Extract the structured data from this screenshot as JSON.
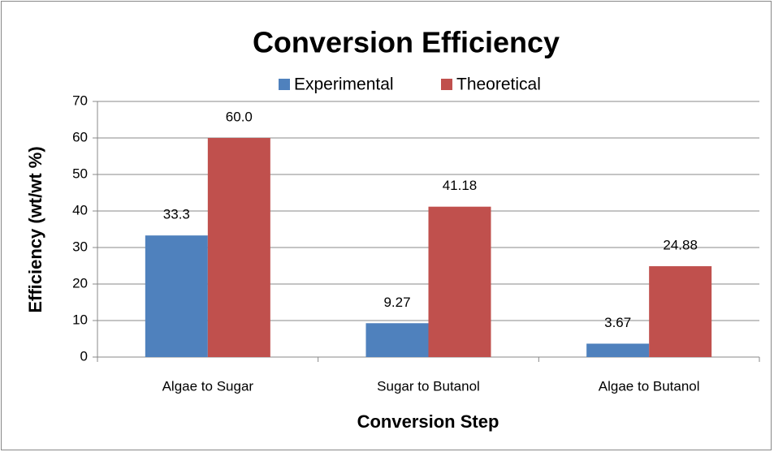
{
  "chart_data": {
    "type": "bar",
    "title": "Conversion Efficiency",
    "x_label": "Conversion Step",
    "y_label": "Efficiency (wt/wt %)",
    "categories": [
      "Algae to Sugar",
      "Sugar to Butanol",
      "Algae to Butanol"
    ],
    "series": [
      {
        "name": "Experimental",
        "color": "#4f81bd",
        "values": [
          33.3,
          9.27,
          3.67
        ]
      },
      {
        "name": "Theoretical",
        "color": "#c0504d",
        "values": [
          60.0,
          41.18,
          24.88
        ],
        "value_labels": [
          "60.0",
          "41.18",
          "24.88"
        ]
      }
    ],
    "ylim": [
      0,
      70
    ],
    "yticks": [
      0,
      10,
      20,
      30,
      40,
      50,
      60,
      70
    ],
    "grid": true,
    "legend": "top"
  }
}
